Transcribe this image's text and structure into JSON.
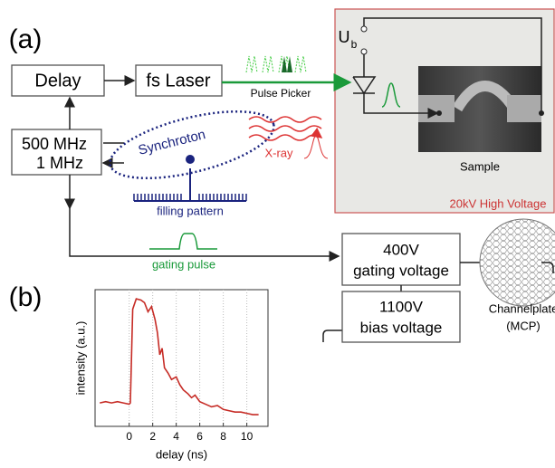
{
  "diagram": {
    "label_a": "(a)",
    "label_b": "(b)",
    "delay": "Delay",
    "laser": "fs Laser",
    "pulse_picker": "Pulse Picker",
    "bias_symbol": "U",
    "bias_sub": "b",
    "sample": "Sample",
    "high_voltage": "20kV High Voltage",
    "freq1": "500 MHz",
    "freq2": "1 MHz",
    "synchrotron": "Synchroton",
    "xray": "X-ray",
    "filling": "filling pattern",
    "gating_pulse": "gating pulse",
    "gate_v": "400V",
    "gate_label": "gating voltage",
    "bias_v": "1100V",
    "bias_label": "bias voltage",
    "mcp1": "Channelplate",
    "mcp2": "(MCP)"
  },
  "chart_data": {
    "type": "line",
    "xlabel": "delay (ns)",
    "ylabel": "intensity (a.u.)",
    "color": "#c62b25",
    "grid": true,
    "x": [
      -2.5,
      -2,
      -1.5,
      -1,
      -0.5,
      0,
      0.1,
      0.3,
      0.6,
      1.0,
      1.3,
      1.6,
      1.9,
      2.2,
      2.4,
      2.6,
      2.8,
      3.0,
      3.3,
      3.6,
      4.0,
      4.3,
      4.6,
      5.0,
      5.3,
      5.6,
      6.0,
      6.5,
      7.0,
      7.5,
      8.0,
      8.5,
      9.0,
      9.5,
      10.0,
      10.5,
      11
    ],
    "values": [
      0.18,
      0.19,
      0.18,
      0.19,
      0.18,
      0.17,
      0.18,
      0.9,
      0.98,
      0.97,
      0.95,
      0.88,
      0.92,
      0.82,
      0.72,
      0.55,
      0.6,
      0.45,
      0.41,
      0.36,
      0.38,
      0.32,
      0.28,
      0.25,
      0.22,
      0.24,
      0.19,
      0.17,
      0.15,
      0.16,
      0.13,
      0.12,
      0.11,
      0.11,
      0.1,
      0.09,
      0.09
    ],
    "xlim": [
      -2.9,
      11.8
    ],
    "ylim": [
      0,
      1.05
    ],
    "xticks": [
      0,
      2,
      4,
      6,
      8,
      10
    ]
  }
}
